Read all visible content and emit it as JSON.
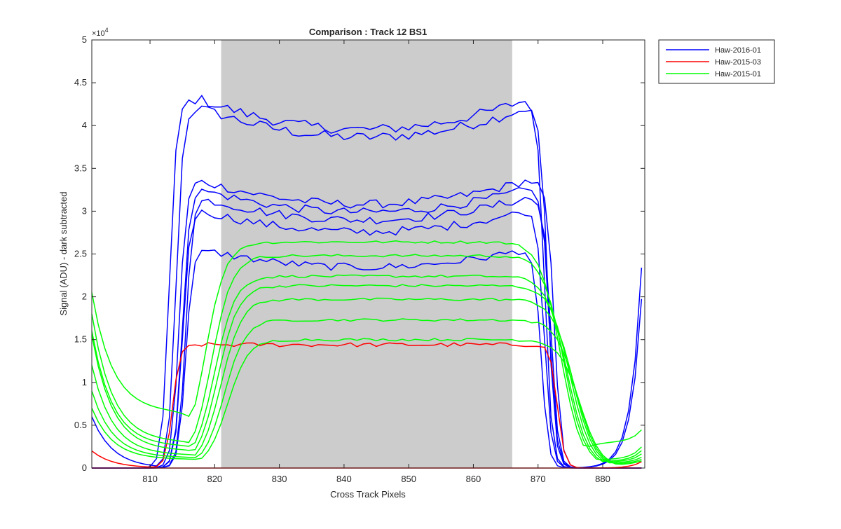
{
  "chart_data": {
    "type": "line",
    "title": "Comparison : Track 12  BS1",
    "xlabel": "Cross Track Pixels",
    "ylabel": "Signal (ADU) - dark subtracted",
    "y_exponent_label": "×10",
    "y_exponent_power": "4",
    "xlim": [
      801,
      886.5
    ],
    "ylim": [
      0,
      50000
    ],
    "xticks": [
      810,
      820,
      830,
      840,
      850,
      860,
      870,
      880
    ],
    "xtick_labels": [
      "810",
      "820",
      "830",
      "840",
      "850",
      "860",
      "870",
      "880"
    ],
    "yticks": [
      0,
      5000,
      10000,
      15000,
      20000,
      25000,
      30000,
      35000,
      40000,
      45000,
      50000
    ],
    "ytick_labels": [
      "0",
      "0.5",
      "1",
      "1.5",
      "2",
      "2.5",
      "3",
      "3.5",
      "4",
      "4.5",
      "5"
    ],
    "grid": false,
    "legend_position": "outside-top-right",
    "shaded_region": {
      "x_start": 821,
      "x_end": 866,
      "color": "#cccccc"
    },
    "legend": [
      {
        "label": "Haw-2016-01",
        "color": "#0000ff"
      },
      {
        "label": "Haw-2015-03",
        "color": "#ff0000"
      },
      {
        "label": "Haw-2015-01",
        "color": "#00ff00"
      }
    ],
    "series": [
      {
        "group": "Haw-2016-01",
        "color": "#0000ff",
        "level": 42000,
        "noise": 600,
        "rise": 814.0,
        "fall": 871.5,
        "shape": "dip",
        "tail_left": 6000,
        "tail_right": 0
      },
      {
        "group": "Haw-2016-01",
        "color": "#0000ff",
        "level": 43000,
        "noise": 600,
        "rise": 813.0,
        "fall": 871.0,
        "shape": "dip",
        "tail_left": 0,
        "tail_right": 32000
      },
      {
        "group": "Haw-2016-01",
        "color": "#0000ff",
        "level": 33500,
        "noise": 500,
        "rise": 814.5,
        "fall": 872.5,
        "shape": "dip",
        "tail_left": 0,
        "tail_right": 27000
      },
      {
        "group": "Haw-2016-01",
        "color": "#0000ff",
        "level": 32500,
        "noise": 500,
        "rise": 815.0,
        "fall": 871.8,
        "shape": "dip",
        "tail_left": 0,
        "tail_right": 0
      },
      {
        "group": "Haw-2016-01",
        "color": "#0000ff",
        "level": 31500,
        "noise": 500,
        "rise": 815.5,
        "fall": 872.0,
        "shape": "dip",
        "tail_left": 0,
        "tail_right": 0
      },
      {
        "group": "Haw-2016-01",
        "color": "#0000ff",
        "level": 30000,
        "noise": 500,
        "rise": 815.0,
        "fall": 871.0,
        "shape": "dip",
        "tail_left": 0,
        "tail_right": 0
      },
      {
        "group": "Haw-2016-01",
        "color": "#0000ff",
        "level": 25500,
        "noise": 450,
        "rise": 815.5,
        "fall": 870.5,
        "shape": "dip",
        "tail_left": 0,
        "tail_right": 0
      },
      {
        "group": "Haw-2015-03",
        "color": "#ff0000",
        "level": 14400,
        "noise": 250,
        "rise": 813.5,
        "fall": 873.0,
        "shape": "flat",
        "tail_left": 2000,
        "tail_right": 1000
      },
      {
        "group": "Haw-2015-03",
        "color": "#ff0000",
        "level": 0,
        "noise": 0,
        "rise": 800,
        "fall": 900,
        "shape": "flat",
        "tail_left": 0,
        "tail_right": 0
      },
      {
        "group": "Haw-2015-01",
        "color": "#00ff00",
        "level": 26400,
        "noise": 150,
        "rise": 818.5,
        "fall": 873.5,
        "shape": "bump",
        "tail_left": 20500,
        "tail_right": 5000,
        "min_left": 6500,
        "min_right": 3000
      },
      {
        "group": "Haw-2015-01",
        "color": "#00ff00",
        "level": 24800,
        "noise": 150,
        "rise": 819.5,
        "fall": 874.0,
        "shape": "bump",
        "tail_left": 18000,
        "tail_right": 3000,
        "min_left": 3000,
        "min_right": 1000
      },
      {
        "group": "Haw-2015-01",
        "color": "#00ff00",
        "level": 22400,
        "noise": 150,
        "rise": 820.0,
        "fall": 874.5,
        "shape": "bump",
        "tail_left": 16000,
        "tail_right": 2500,
        "min_left": 2500,
        "min_right": 800
      },
      {
        "group": "Haw-2015-01",
        "color": "#00ff00",
        "level": 21300,
        "noise": 150,
        "rise": 820.5,
        "fall": 875.0,
        "shape": "bump",
        "tail_left": 15500,
        "tail_right": 2000,
        "min_left": 2000,
        "min_right": 700
      },
      {
        "group": "Haw-2015-01",
        "color": "#00ff00",
        "level": 19700,
        "noise": 150,
        "rise": 821.0,
        "fall": 875.5,
        "shape": "bump",
        "tail_left": 12000,
        "tail_right": 1500,
        "min_left": 1500,
        "min_right": 600
      },
      {
        "group": "Haw-2015-01",
        "color": "#00ff00",
        "level": 17300,
        "noise": 150,
        "rise": 821.5,
        "fall": 876.0,
        "shape": "bump",
        "tail_left": 9000,
        "tail_right": 1200,
        "min_left": 1200,
        "min_right": 500
      },
      {
        "group": "Haw-2015-01",
        "color": "#00ff00",
        "level": 15000,
        "noise": 150,
        "rise": 822.0,
        "fall": 876.5,
        "shape": "bump",
        "tail_left": 7000,
        "tail_right": 1000,
        "min_left": 1000,
        "min_right": 400
      }
    ]
  }
}
